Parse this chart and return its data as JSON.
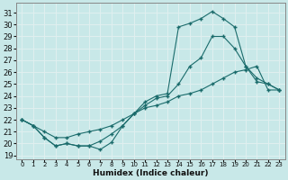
{
  "xlabel": "Humidex (Indice chaleur)",
  "bg_color": "#c8e8e8",
  "line_color": "#1a6b6b",
  "grid_color": "#e0f0f0",
  "xlim": [
    -0.5,
    23.5
  ],
  "ylim": [
    18.7,
    31.8
  ],
  "yticks": [
    19,
    20,
    21,
    22,
    23,
    24,
    25,
    26,
    27,
    28,
    29,
    30,
    31
  ],
  "xticks": [
    0,
    1,
    2,
    3,
    4,
    5,
    6,
    7,
    8,
    9,
    10,
    11,
    12,
    13,
    14,
    15,
    16,
    17,
    18,
    19,
    20,
    21,
    22,
    23
  ],
  "line1_x": [
    0,
    1,
    2,
    3,
    4,
    5,
    6,
    7,
    8,
    9,
    10,
    11,
    12,
    13,
    14,
    15,
    16,
    17,
    18,
    19,
    20,
    21,
    22,
    23
  ],
  "line1_y": [
    22.0,
    21.5,
    20.5,
    19.8,
    20.0,
    19.8,
    19.8,
    19.5,
    20.1,
    21.5,
    22.5,
    23.5,
    24.0,
    24.2,
    29.8,
    30.1,
    30.5,
    31.1,
    30.5,
    29.8,
    26.5,
    25.2,
    25.0,
    24.5
  ],
  "line2_x": [
    0,
    1,
    2,
    3,
    4,
    5,
    6,
    7,
    8,
    9,
    10,
    11,
    12,
    13,
    14,
    15,
    16,
    17,
    18,
    19,
    20,
    21,
    22,
    23
  ],
  "line2_y": [
    22.0,
    21.5,
    20.5,
    19.8,
    20.0,
    19.8,
    19.8,
    20.2,
    20.8,
    21.5,
    22.5,
    23.2,
    23.8,
    24.0,
    25.0,
    26.5,
    27.2,
    29.0,
    29.0,
    28.0,
    26.5,
    25.5,
    25.0,
    24.5
  ],
  "line3_x": [
    0,
    1,
    2,
    3,
    4,
    5,
    6,
    7,
    8,
    9,
    10,
    11,
    12,
    13,
    14,
    15,
    16,
    17,
    18,
    19,
    20,
    21,
    22,
    23
  ],
  "line3_y": [
    22.0,
    21.5,
    21.0,
    20.5,
    20.5,
    20.8,
    21.0,
    21.2,
    21.5,
    22.0,
    22.5,
    23.0,
    23.2,
    23.5,
    24.0,
    24.2,
    24.5,
    25.0,
    25.5,
    26.0,
    26.2,
    26.5,
    24.5,
    24.5
  ]
}
